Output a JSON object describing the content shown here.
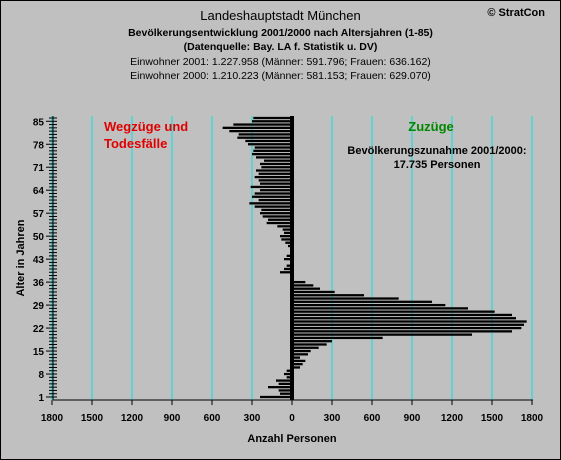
{
  "header": {
    "title": "Landeshauptstadt München",
    "subtitle": "Bevölkerungsentwicklung 2001/2000 nach Altersjahren (1-85)",
    "source": "(Datenquelle: Bay. LA f. Statistik u. DV)",
    "line_2001": "Einwohner 2001: 1.227.958  (Männer: 591.796; Frauen: 636.162)",
    "line_2000": "Einwohner 2000: 1.210.223  (Männer: 581.153; Frauen: 629.070)",
    "copyright": "© StratCon"
  },
  "chart_data": {
    "type": "bar",
    "orientation": "horizontal",
    "xlabel": "Anzahl Personen",
    "ylabel": "Alter in Jahren",
    "xlim": [
      -1800,
      1800
    ],
    "ylim": [
      1,
      86
    ],
    "x_ticks": [
      "1800",
      "1500",
      "1200",
      "900",
      "600",
      "300",
      "0",
      "300",
      "600",
      "900",
      "1200",
      "1500",
      "1800"
    ],
    "y_ticks": [
      1,
      8,
      15,
      22,
      29,
      36,
      43,
      50,
      57,
      64,
      71,
      78,
      85
    ],
    "grid": "vertical",
    "colors": {
      "bars": "#000000",
      "grid": "#00e5e5",
      "left_annotation": "#e00000",
      "right_annotation": "#008800"
    },
    "annotations": {
      "left_line1": "Wegzüge und",
      "left_line2": "Todesfälle",
      "right": "Zuzüge",
      "increase_line1": "Bevölkerungszunahme 2001/2000:",
      "increase_line2": "17.735 Personen"
    },
    "ages": [
      1,
      2,
      3,
      4,
      5,
      6,
      7,
      8,
      9,
      10,
      11,
      12,
      13,
      14,
      15,
      16,
      17,
      18,
      19,
      20,
      21,
      22,
      23,
      24,
      25,
      26,
      27,
      28,
      29,
      30,
      31,
      32,
      33,
      34,
      35,
      36,
      37,
      38,
      39,
      40,
      41,
      42,
      43,
      44,
      45,
      46,
      47,
      48,
      49,
      50,
      51,
      52,
      53,
      54,
      55,
      56,
      57,
      58,
      59,
      60,
      61,
      62,
      63,
      64,
      65,
      66,
      67,
      68,
      69,
      70,
      71,
      72,
      73,
      74,
      75,
      76,
      77,
      78,
      79,
      80,
      81,
      82,
      83,
      84,
      85,
      86
    ],
    "values": [
      -240,
      -90,
      -100,
      -180,
      -100,
      -120,
      -40,
      -60,
      -40,
      60,
      80,
      100,
      60,
      120,
      140,
      200,
      260,
      300,
      680,
      1350,
      1650,
      1720,
      1740,
      1760,
      1680,
      1650,
      1520,
      1320,
      1150,
      1050,
      800,
      540,
      320,
      210,
      160,
      100,
      -10,
      -10,
      -90,
      -60,
      -40,
      -10,
      -60,
      -40,
      -10,
      -10,
      -30,
      -50,
      -80,
      -90,
      -60,
      -70,
      -110,
      -190,
      -180,
      -220,
      -240,
      -230,
      -280,
      -320,
      -250,
      -300,
      -280,
      -240,
      -310,
      -240,
      -250,
      -280,
      -250,
      -270,
      -230,
      -240,
      -210,
      -270,
      -300,
      -290,
      -280,
      -330,
      -350,
      -410,
      -400,
      -470,
      -520,
      -440,
      -300,
      -290
    ]
  }
}
